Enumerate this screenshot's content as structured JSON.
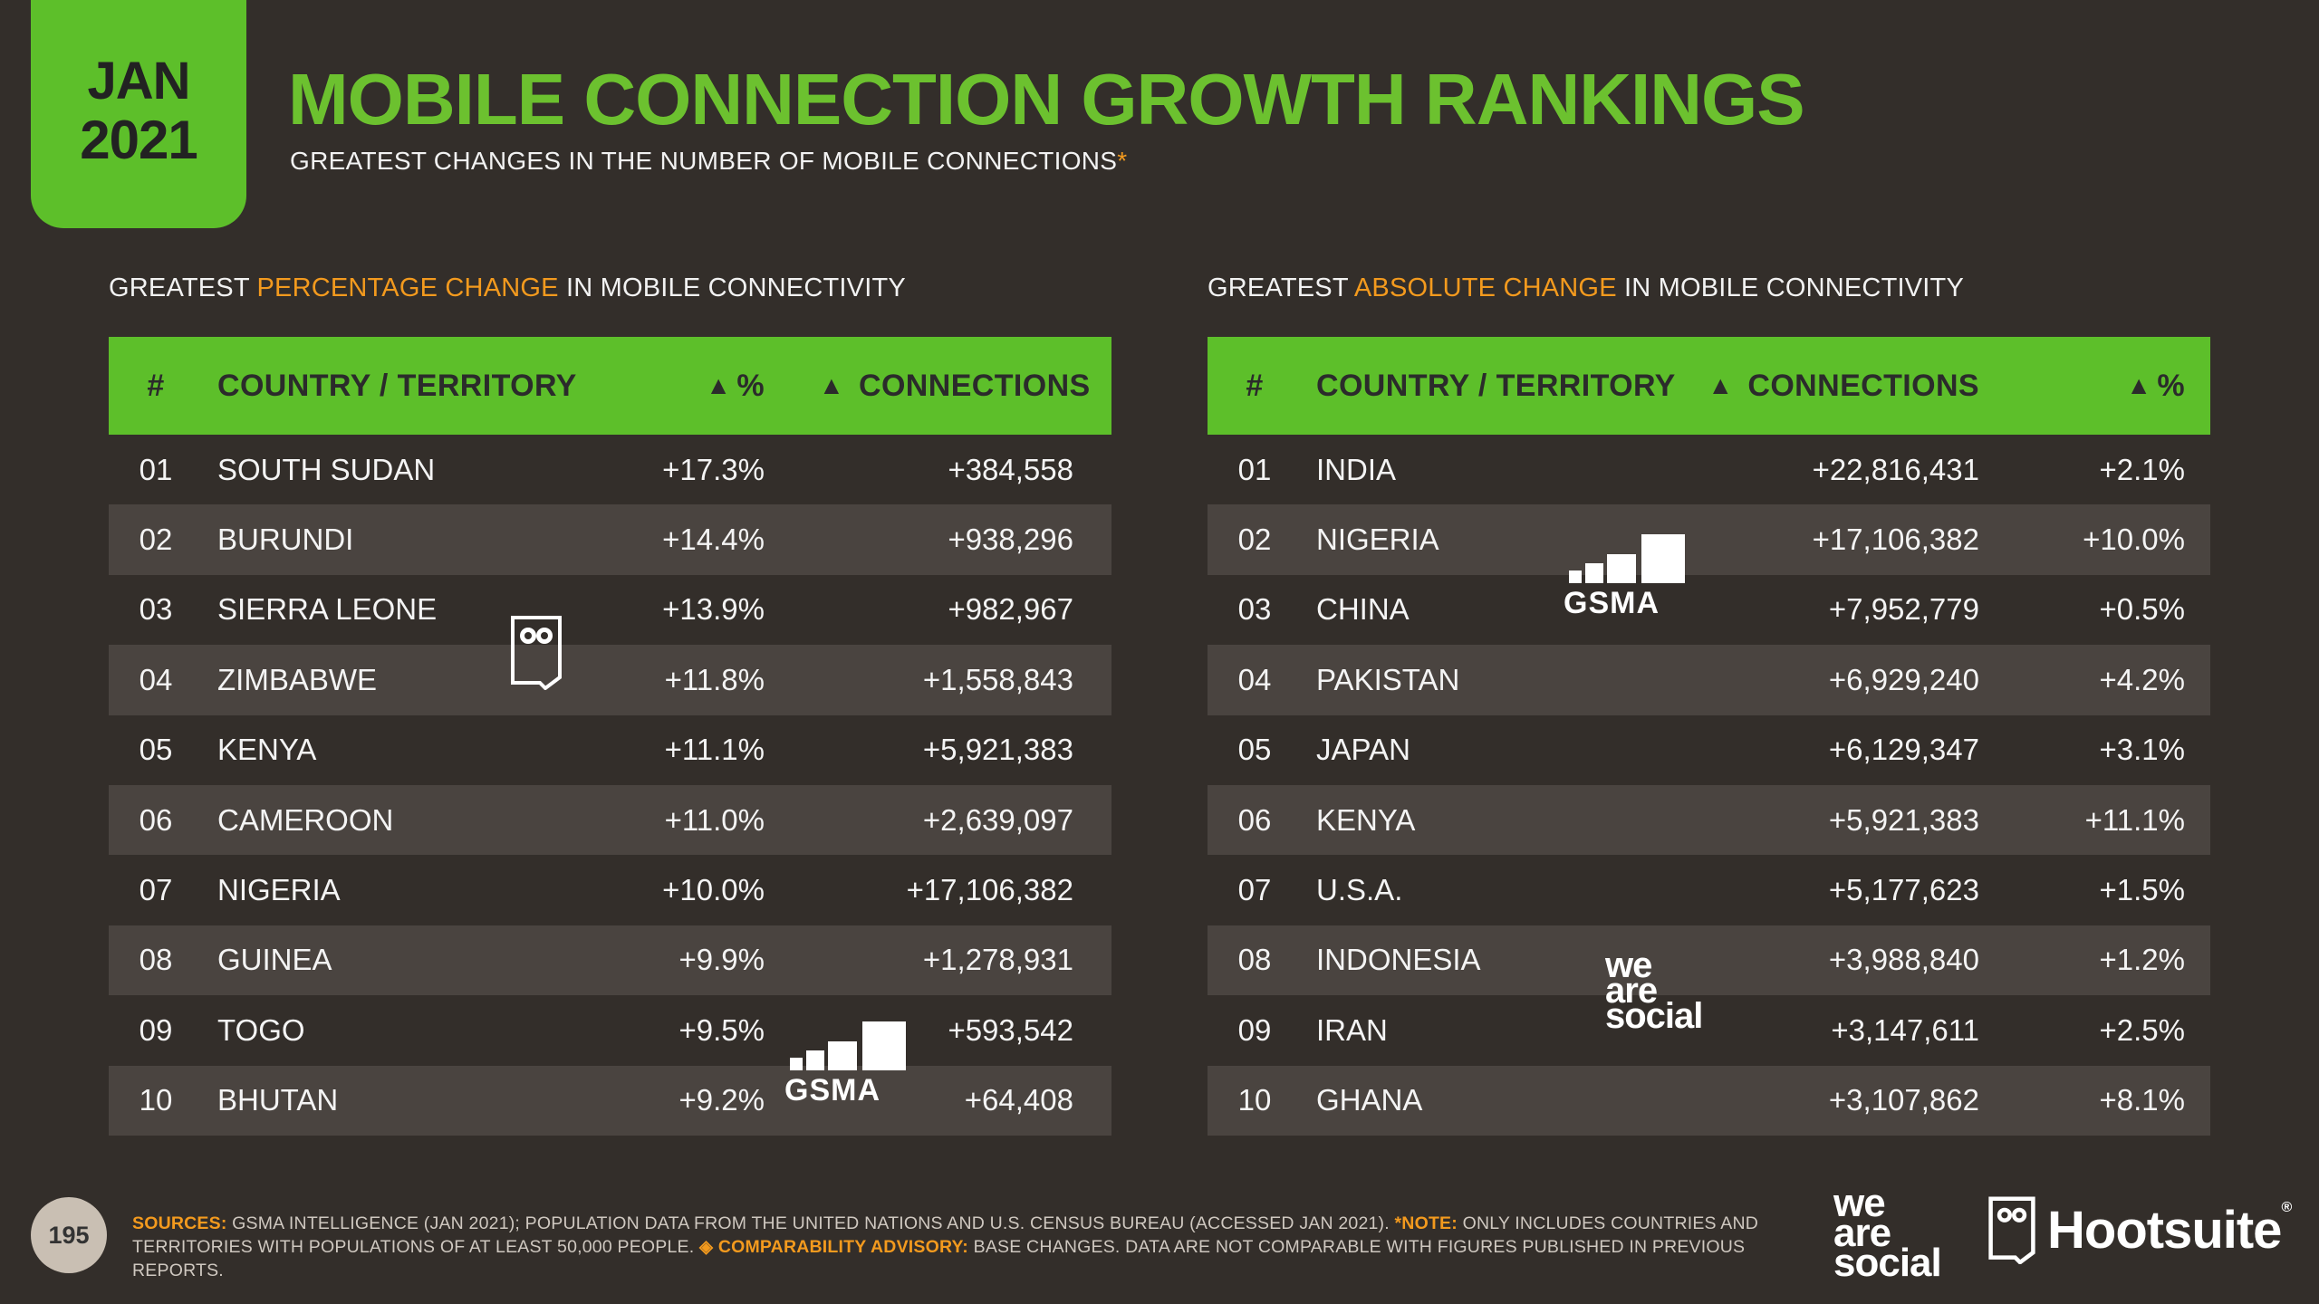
{
  "date": {
    "month": "JAN",
    "year": "2021"
  },
  "title": "MOBILE CONNECTION GROWTH RANKINGS",
  "subtitle": "GREATEST CHANGES IN THE NUMBER OF MOBILE CONNECTIONS",
  "subtitle_mark": "*",
  "left": {
    "heading_pre": "GREATEST ",
    "heading_hl": "PERCENTAGE CHANGE",
    "heading_post": " IN MOBILE CONNECTIVITY",
    "columns": {
      "rank": "#",
      "country": "COUNTRY / TERRITORY",
      "pct": "%",
      "conn": "CONNECTIONS"
    },
    "rows": [
      {
        "rank": "01",
        "country": "SOUTH SUDAN",
        "pct": "+17.3%",
        "conn": "+384,558"
      },
      {
        "rank": "02",
        "country": "BURUNDI",
        "pct": "+14.4%",
        "conn": "+938,296"
      },
      {
        "rank": "03",
        "country": "SIERRA LEONE",
        "pct": "+13.9%",
        "conn": "+982,967"
      },
      {
        "rank": "04",
        "country": "ZIMBABWE",
        "pct": "+11.8%",
        "conn": "+1,558,843"
      },
      {
        "rank": "05",
        "country": "KENYA",
        "pct": "+11.1%",
        "conn": "+5,921,383"
      },
      {
        "rank": "06",
        "country": "CAMEROON",
        "pct": "+11.0%",
        "conn": "+2,639,097"
      },
      {
        "rank": "07",
        "country": "NIGERIA",
        "pct": "+10.0%",
        "conn": "+17,106,382"
      },
      {
        "rank": "08",
        "country": "GUINEA",
        "pct": "+9.9%",
        "conn": "+1,278,931"
      },
      {
        "rank": "09",
        "country": "TOGO",
        "pct": "+9.5%",
        "conn": "+593,542"
      },
      {
        "rank": "10",
        "country": "BHUTAN",
        "pct": "+9.2%",
        "conn": "+64,408"
      }
    ]
  },
  "right": {
    "heading_pre": "GREATEST ",
    "heading_hl": "ABSOLUTE CHANGE",
    "heading_post": " IN MOBILE CONNECTIVITY",
    "columns": {
      "rank": "#",
      "country": "COUNTRY / TERRITORY",
      "conn": "CONNECTIONS",
      "pct": "%"
    },
    "rows": [
      {
        "rank": "01",
        "country": "INDIA",
        "conn": "+22,816,431",
        "pct": "+2.1%"
      },
      {
        "rank": "02",
        "country": "NIGERIA",
        "conn": "+17,106,382",
        "pct": "+10.0%"
      },
      {
        "rank": "03",
        "country": "CHINA",
        "conn": "+7,952,779",
        "pct": "+0.5%"
      },
      {
        "rank": "04",
        "country": "PAKISTAN",
        "conn": "+6,929,240",
        "pct": "+4.2%"
      },
      {
        "rank": "05",
        "country": "JAPAN",
        "conn": "+6,129,347",
        "pct": "+3.1%"
      },
      {
        "rank": "06",
        "country": "KENYA",
        "conn": "+5,921,383",
        "pct": "+11.1%"
      },
      {
        "rank": "07",
        "country": "U.S.A.",
        "conn": "+5,177,623",
        "pct": "+1.5%"
      },
      {
        "rank": "08",
        "country": "INDONESIA",
        "conn": "+3,988,840",
        "pct": "+1.2%"
      },
      {
        "rank": "09",
        "country": "IRAN",
        "conn": "+3,147,611",
        "pct": "+2.5%"
      },
      {
        "rank": "10",
        "country": "GHANA",
        "conn": "+3,107,862",
        "pct": "+8.1%"
      }
    ]
  },
  "footer": {
    "page_number": "195",
    "sources_label": "SOURCES:",
    "sources_text": " GSMA INTELLIGENCE (JAN 2021); POPULATION DATA FROM THE UNITED NATIONS AND U.S. CENSUS BUREAU (ACCESSED JAN 2021). ",
    "note_label": "*NOTE:",
    "note_text": " ONLY INCLUDES COUNTRIES AND TERRITORIES WITH POPULATIONS OF AT LEAST 50,000 PEOPLE. ",
    "advisory_label": "COMPARABILITY ADVISORY:",
    "advisory_text": " BASE CHANGES. DATA ARE NOT COMPARABLE WITH FIGURES PUBLISHED IN PREVIOUS REPORTS."
  },
  "brands": {
    "wearesocial": [
      "we",
      "are",
      "social"
    ],
    "hootsuite": "Hootsuite",
    "hootsuite_reg": "®",
    "gsma": "GSMA"
  },
  "colors": {
    "accent": "#5dbf2a",
    "title": "#6cc12f",
    "highlight": "#f39a1e",
    "background": "#332e2a"
  }
}
